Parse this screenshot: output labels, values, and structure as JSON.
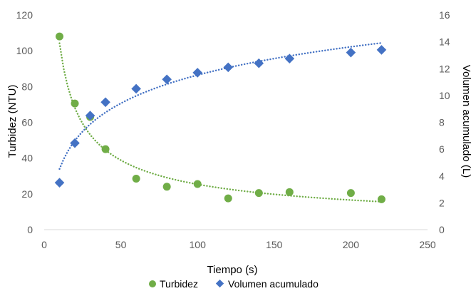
{
  "chart_data": {
    "type": "scatter",
    "title": "",
    "xlabel": "Tiempo (s)",
    "ylabel": "Turbidez (NTU)",
    "y2label": "Volumen acumulado (L)",
    "xlim": [
      0,
      250
    ],
    "ylim": [
      0,
      120
    ],
    "y2lim": [
      0,
      16
    ],
    "xticks": [
      "0",
      "50",
      "100",
      "150",
      "200",
      "250"
    ],
    "yticks": [
      "0",
      "20",
      "40",
      "60",
      "80",
      "100",
      "120"
    ],
    "y2ticks": [
      "0",
      "2",
      "4",
      "6",
      "8",
      "10",
      "12",
      "14",
      "16"
    ],
    "grid": false,
    "legend_position": "bottom",
    "series": [
      {
        "name": "Turbidez",
        "axis": "left",
        "marker": "circle",
        "color": "#70ad47",
        "trendline": "power",
        "x": [
          10,
          20,
          30,
          40,
          60,
          80,
          100,
          120,
          140,
          160,
          200,
          220
        ],
        "y": [
          108,
          70.5,
          63,
          45,
          28.5,
          24,
          25.5,
          17.5,
          20.5,
          21,
          20.5,
          17
        ]
      },
      {
        "name": "Volumen acumulado",
        "axis": "right",
        "marker": "diamond",
        "color": "#4472c4",
        "trendline": "logarithmic",
        "x": [
          10,
          20,
          30,
          40,
          60,
          80,
          100,
          120,
          140,
          160,
          200,
          220
        ],
        "y": [
          3.5,
          6.45,
          8.5,
          9.5,
          10.5,
          11.2,
          11.7,
          12.1,
          12.4,
          12.75,
          13.2,
          13.4
        ]
      }
    ]
  }
}
